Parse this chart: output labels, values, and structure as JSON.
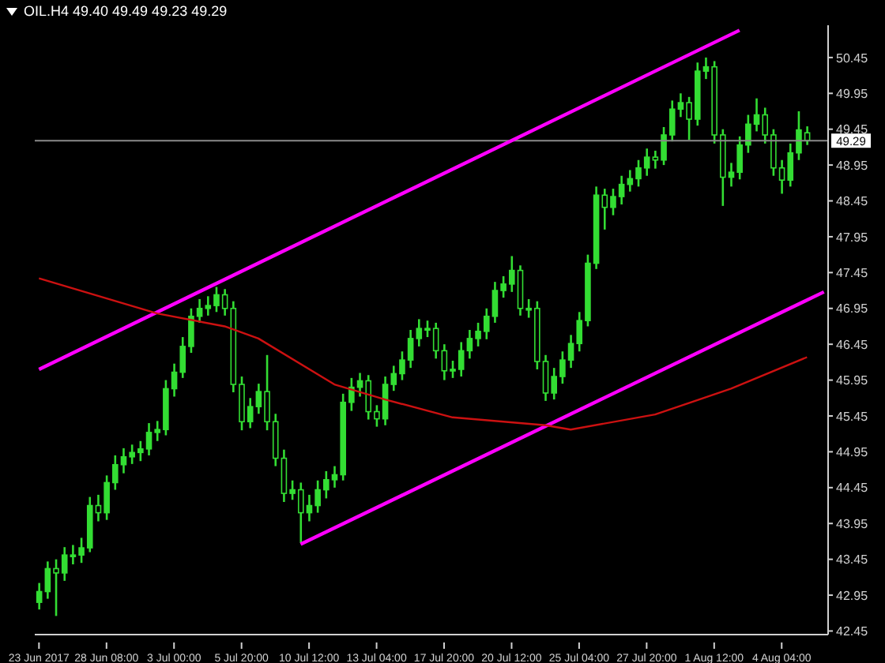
{
  "chart_data": {
    "type": "candlestick",
    "title": "OIL.H4 49.40 49.49 49.23 49.29",
    "color": "#33dd33",
    "categories": [
      "23 Jun 2017",
      null,
      null,
      null,
      null,
      null,
      null,
      null,
      "28 Jun 08:00",
      null,
      null,
      null,
      null,
      null,
      null,
      null,
      "3 Jul 00:00",
      null,
      null,
      null,
      null,
      null,
      null,
      null,
      "5 Jul 20:00",
      null,
      null,
      null,
      null,
      null,
      null,
      null,
      "10 Jul 12:00",
      null,
      null,
      null,
      null,
      null,
      null,
      null,
      "13 Jul 04:00",
      null,
      null,
      null,
      null,
      null,
      null,
      null,
      "17 Jul 20:00",
      null,
      null,
      null,
      null,
      null,
      null,
      null,
      "20 Jul 12:00",
      null,
      null,
      null,
      null,
      null,
      null,
      null,
      "25 Jul 04:00",
      null,
      null,
      null,
      null,
      null,
      null,
      null,
      "27 Jul 20:00",
      null,
      null,
      null,
      null,
      null,
      null,
      null,
      "1 Aug 12:00",
      null,
      null,
      null,
      null,
      null,
      null,
      null,
      "4 Aug 04:00",
      null,
      null,
      null,
      null,
      null
    ],
    "ohlc": [
      [
        42.85,
        43.12,
        42.75,
        43.0
      ],
      [
        43.0,
        43.42,
        42.9,
        43.32
      ],
      [
        43.32,
        43.45,
        42.66,
        43.26
      ],
      [
        43.26,
        43.62,
        43.15,
        43.51
      ],
      [
        43.51,
        43.65,
        43.38,
        43.51
      ],
      [
        43.51,
        43.75,
        43.4,
        43.61
      ],
      [
        43.61,
        44.32,
        43.55,
        44.2
      ],
      [
        44.2,
        44.35,
        43.98,
        44.1
      ],
      [
        44.1,
        44.62,
        44.0,
        44.52
      ],
      [
        44.52,
        44.9,
        44.42,
        44.77
      ],
      [
        44.77,
        45.0,
        44.65,
        44.88
      ],
      [
        44.88,
        45.05,
        44.78,
        44.94
      ],
      [
        44.94,
        45.1,
        44.82,
        44.99
      ],
      [
        44.99,
        45.35,
        44.9,
        45.22
      ],
      [
        45.22,
        45.38,
        45.1,
        45.26
      ],
      [
        45.26,
        45.95,
        45.18,
        45.83
      ],
      [
        45.83,
        46.18,
        45.72,
        46.06
      ],
      [
        46.06,
        46.55,
        45.98,
        46.42
      ],
      [
        46.42,
        46.95,
        46.33,
        46.84
      ],
      [
        46.84,
        47.08,
        46.75,
        46.95
      ],
      [
        46.95,
        47.12,
        46.85,
        46.99
      ],
      [
        46.99,
        47.25,
        46.9,
        47.14
      ],
      [
        47.14,
        47.22,
        46.85,
        46.95
      ],
      [
        46.95,
        47.05,
        45.78,
        45.89
      ],
      [
        45.89,
        46.0,
        45.25,
        45.37
      ],
      [
        45.37,
        45.7,
        45.28,
        45.58
      ],
      [
        45.58,
        45.9,
        45.48,
        45.79
      ],
      [
        45.79,
        46.3,
        45.25,
        45.37
      ],
      [
        45.37,
        45.48,
        44.75,
        44.86
      ],
      [
        44.86,
        44.98,
        44.25,
        44.37
      ],
      [
        44.37,
        44.55,
        44.28,
        44.42
      ],
      [
        44.42,
        44.52,
        43.68,
        44.1
      ],
      [
        44.1,
        44.35,
        43.98,
        44.2
      ],
      [
        44.2,
        44.55,
        44.1,
        44.42
      ],
      [
        44.42,
        44.68,
        44.3,
        44.56
      ],
      [
        44.56,
        44.75,
        44.45,
        44.63
      ],
      [
        44.63,
        45.76,
        44.55,
        45.64
      ],
      [
        45.64,
        45.98,
        45.52,
        45.85
      ],
      [
        45.85,
        46.05,
        45.72,
        45.94
      ],
      [
        45.94,
        46.02,
        45.4,
        45.51
      ],
      [
        45.51,
        45.6,
        45.3,
        45.41
      ],
      [
        45.41,
        46.0,
        45.32,
        45.89
      ],
      [
        45.89,
        46.15,
        45.8,
        46.04
      ],
      [
        46.04,
        46.35,
        45.95,
        46.23
      ],
      [
        46.23,
        46.65,
        46.12,
        46.53
      ],
      [
        46.53,
        46.8,
        46.42,
        46.67
      ],
      [
        46.67,
        46.78,
        46.55,
        46.67
      ],
      [
        46.67,
        46.75,
        46.25,
        46.36
      ],
      [
        46.36,
        46.45,
        45.95,
        46.08
      ],
      [
        46.08,
        46.22,
        45.98,
        46.1
      ],
      [
        46.1,
        46.48,
        46.0,
        46.36
      ],
      [
        46.36,
        46.65,
        46.25,
        46.53
      ],
      [
        46.53,
        46.75,
        46.42,
        46.63
      ],
      [
        46.63,
        46.95,
        46.52,
        46.84
      ],
      [
        46.84,
        47.32,
        46.75,
        47.2
      ],
      [
        47.2,
        47.4,
        47.1,
        47.29
      ],
      [
        47.29,
        47.68,
        47.18,
        47.48
      ],
      [
        47.48,
        47.55,
        46.85,
        46.95
      ],
      [
        46.95,
        47.08,
        46.82,
        46.95
      ],
      [
        46.95,
        47.05,
        46.1,
        46.21
      ],
      [
        46.21,
        46.3,
        45.66,
        45.77
      ],
      [
        45.77,
        46.12,
        45.68,
        46.0
      ],
      [
        46.0,
        46.35,
        45.9,
        46.23
      ],
      [
        46.23,
        46.58,
        46.12,
        46.46
      ],
      [
        46.46,
        46.9,
        46.35,
        46.78
      ],
      [
        46.78,
        47.7,
        46.7,
        47.58
      ],
      [
        47.58,
        48.65,
        47.5,
        48.53
      ],
      [
        48.53,
        48.62,
        48.05,
        48.36
      ],
      [
        48.36,
        48.62,
        48.25,
        48.51
      ],
      [
        48.51,
        48.8,
        48.4,
        48.68
      ],
      [
        48.68,
        48.88,
        48.58,
        48.76
      ],
      [
        48.76,
        49.02,
        48.65,
        48.91
      ],
      [
        48.91,
        49.18,
        48.8,
        49.06
      ],
      [
        49.06,
        49.15,
        48.9,
        49.02
      ],
      [
        49.02,
        49.48,
        48.95,
        49.37
      ],
      [
        49.37,
        49.85,
        49.28,
        49.73
      ],
      [
        49.73,
        49.95,
        49.62,
        49.82
      ],
      [
        49.82,
        49.9,
        49.3,
        49.59
      ],
      [
        49.59,
        50.38,
        49.5,
        50.26
      ],
      [
        50.26,
        50.45,
        50.15,
        50.32
      ],
      [
        50.32,
        50.4,
        49.25,
        49.37
      ],
      [
        49.37,
        49.45,
        48.38,
        48.78
      ],
      [
        48.78,
        48.98,
        48.65,
        48.85
      ],
      [
        48.85,
        49.35,
        48.75,
        49.23
      ],
      [
        49.23,
        49.65,
        49.12,
        49.52
      ],
      [
        49.52,
        49.88,
        49.42,
        49.65
      ],
      [
        49.65,
        49.75,
        49.25,
        49.37
      ],
      [
        49.37,
        49.45,
        48.8,
        48.91
      ],
      [
        48.91,
        49.02,
        48.55,
        48.74
      ],
      [
        48.74,
        49.25,
        48.65,
        49.12
      ],
      [
        49.12,
        49.7,
        49.02,
        49.44
      ],
      [
        49.4,
        49.49,
        49.23,
        49.29
      ],
      null,
      null
    ],
    "series": [
      {
        "type": "line",
        "color": "#ff00ff",
        "values": [
          46.1,
          null,
          null,
          null,
          null,
          null,
          null,
          null,
          null,
          null,
          null,
          null,
          null,
          null,
          null,
          null,
          null,
          null,
          null,
          null,
          null,
          null,
          null,
          null,
          null,
          null,
          null,
          null,
          null,
          null,
          null,
          null,
          null,
          null,
          null,
          null,
          null,
          null,
          null,
          null,
          null,
          null,
          null,
          null,
          null,
          null,
          null,
          null,
          null,
          null,
          null,
          null,
          null,
          null,
          null,
          null,
          null,
          null,
          null,
          null,
          null,
          null,
          null,
          null,
          null,
          null,
          null,
          null,
          null,
          null,
          null,
          null,
          null,
          null,
          null,
          null,
          null,
          null,
          null,
          null,
          null,
          null,
          null,
          50.83,
          null,
          null,
          null,
          null,
          null,
          null,
          null,
          null,
          null,
          null
        ]
      },
      {
        "type": "line",
        "color": "#ff00ff",
        "values": [
          null,
          null,
          null,
          null,
          null,
          null,
          null,
          null,
          null,
          null,
          null,
          null,
          null,
          null,
          null,
          null,
          null,
          null,
          null,
          null,
          null,
          null,
          null,
          null,
          null,
          null,
          null,
          null,
          null,
          null,
          null,
          43.66,
          null,
          null,
          null,
          null,
          null,
          null,
          null,
          null,
          null,
          null,
          null,
          null,
          null,
          null,
          null,
          null,
          null,
          null,
          null,
          null,
          null,
          null,
          null,
          null,
          null,
          null,
          null,
          null,
          null,
          null,
          null,
          null,
          null,
          null,
          null,
          null,
          null,
          null,
          null,
          null,
          null,
          null,
          null,
          null,
          null,
          null,
          null,
          null,
          null,
          null,
          null,
          null,
          null,
          null,
          null,
          null,
          null,
          null,
          null,
          null,
          null,
          47.18
        ]
      },
      {
        "type": "line",
        "color": "#cc1111",
        "values": [
          47.37,
          null,
          null,
          null,
          null,
          null,
          null,
          null,
          null,
          null,
          null,
          null,
          null,
          null,
          46.88,
          null,
          null,
          null,
          null,
          null,
          null,
          null,
          46.7,
          null,
          null,
          null,
          46.53,
          null,
          null,
          null,
          null,
          null,
          null,
          null,
          null,
          45.89,
          null,
          null,
          null,
          null,
          null,
          45.68,
          null,
          null,
          null,
          null,
          null,
          null,
          null,
          45.43,
          null,
          null,
          null,
          null,
          null,
          null,
          null,
          null,
          null,
          null,
          45.32,
          null,
          null,
          45.26,
          null,
          null,
          null,
          null,
          null,
          null,
          null,
          null,
          null,
          45.47,
          null,
          null,
          null,
          null,
          null,
          null,
          null,
          null,
          45.83,
          null,
          null,
          null,
          null,
          null,
          null,
          null,
          null,
          46.27,
          null,
          null
        ]
      }
    ],
    "ylim": [
      42.4,
      50.9
    ],
    "yticks": [
      42.45,
      42.95,
      43.45,
      43.95,
      44.45,
      44.95,
      45.45,
      45.95,
      46.45,
      46.95,
      47.45,
      47.95,
      48.45,
      48.95,
      49.45,
      49.95,
      50.45
    ],
    "ref_lines": [
      {
        "axis": "y",
        "value": 49.29,
        "label": "49.29",
        "color": "#8a8a8a"
      }
    ]
  }
}
